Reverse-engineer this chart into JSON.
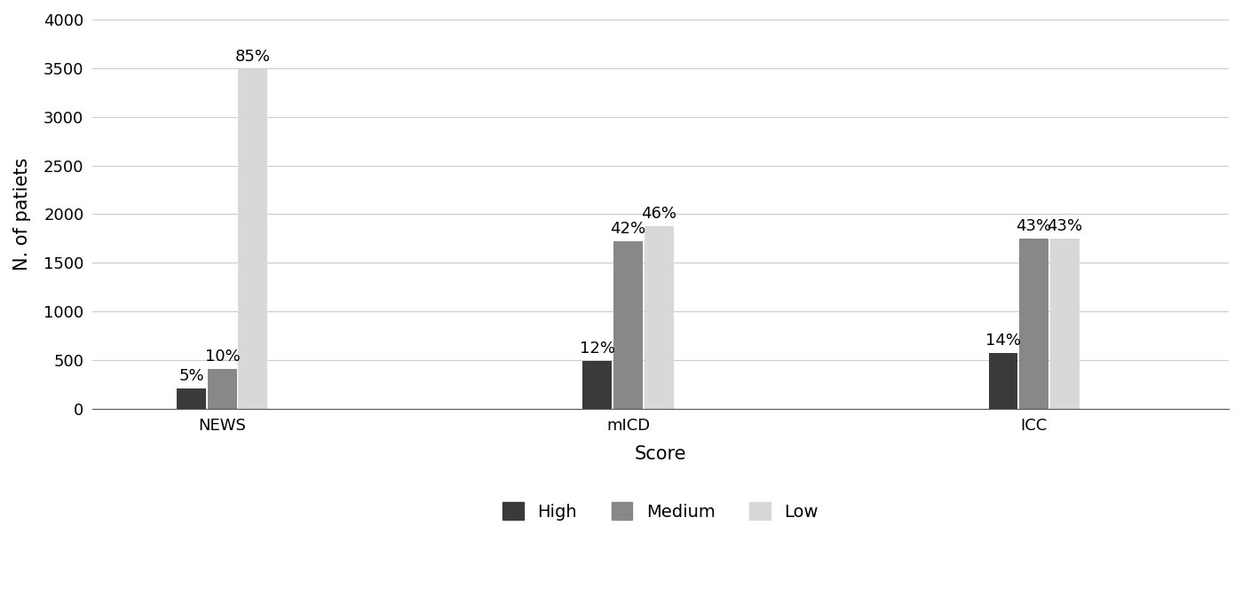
{
  "groups": [
    "NEWS",
    "mICD",
    "ICC"
  ],
  "series": {
    "High": {
      "values": [
        205,
        490,
        575
      ],
      "labels": [
        "5%",
        "12%",
        "14%"
      ],
      "color": "#3a3a3a"
    },
    "Medium": {
      "values": [
        410,
        1720,
        1750
      ],
      "labels": [
        "10%",
        "42%",
        "43%"
      ],
      "color": "#888888"
    },
    "Low": {
      "values": [
        3490,
        1880,
        1750
      ],
      "labels": [
        "85%",
        "46%",
        "43%"
      ],
      "color": "#d8d8d8"
    }
  },
  "series_order": [
    "High",
    "Medium",
    "Low"
  ],
  "xlabel": "Score",
  "ylabel": "N. of patiets",
  "ylim": [
    0,
    4000
  ],
  "yticks": [
    0,
    500,
    1000,
    1500,
    2000,
    2500,
    3000,
    3500,
    4000
  ],
  "bar_width": 0.18,
  "label_fontsize": 13,
  "axis_label_fontsize": 15,
  "tick_fontsize": 13,
  "legend_fontsize": 14,
  "background_color": "#ffffff",
  "group_positions": [
    1.0,
    3.5,
    6.0
  ],
  "xlim": [
    0.2,
    7.2
  ]
}
